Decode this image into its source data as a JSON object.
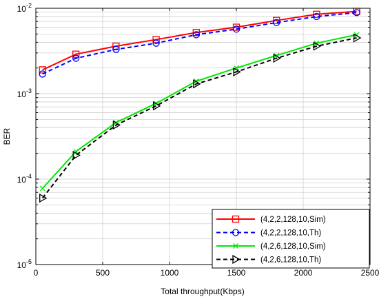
{
  "chart_data": {
    "type": "line",
    "xlabel": "Total throughput(Kbps)",
    "ylabel": "BER",
    "xlim": [
      0,
      2500
    ],
    "ylim": [
      1e-05,
      0.01
    ],
    "yscale": "log",
    "grid": true,
    "legend_position": "bottom-right",
    "x_ticks": [
      "0",
      "500",
      "1000",
      "1500",
      "2000",
      "2500"
    ],
    "y_ticks": [
      {
        "base": "10",
        "exp": "-5",
        "value": 1e-05
      },
      {
        "base": "10",
        "exp": "-4",
        "value": 0.0001
      },
      {
        "base": "10",
        "exp": "-3",
        "value": 0.001
      },
      {
        "base": "10",
        "exp": "-2",
        "value": 0.01
      }
    ],
    "series": [
      {
        "name": "(4,2,2,128,10,Sim)",
        "color": "#ff0000",
        "line_style": "solid",
        "marker": "square",
        "x": [
          50,
          300,
          600,
          900,
          1200,
          1500,
          1800,
          2100,
          2400
        ],
        "y": [
          0.0019,
          0.0029,
          0.0036,
          0.0043,
          0.0052,
          0.006,
          0.0072,
          0.0085,
          0.0092
        ]
      },
      {
        "name": "(4,2,2,128,10,Th)",
        "color": "#0000ff",
        "line_style": "dashed",
        "marker": "circle",
        "x": [
          50,
          300,
          600,
          900,
          1200,
          1500,
          1800,
          2100,
          2400
        ],
        "y": [
          0.0017,
          0.0026,
          0.0033,
          0.0039,
          0.0049,
          0.0057,
          0.0068,
          0.008,
          0.0089
        ]
      },
      {
        "name": "(4,2,6,128,10,Sim)",
        "color": "#00e600",
        "line_style": "solid",
        "marker": "x",
        "x": [
          50,
          300,
          600,
          900,
          1200,
          1500,
          1800,
          2100,
          2400
        ],
        "y": [
          7.8e-05,
          0.00021,
          0.00046,
          0.00077,
          0.0014,
          0.002,
          0.0028,
          0.0039,
          0.0049
        ]
      },
      {
        "name": "(4,2,6,128,10,Th)",
        "color": "#000000",
        "line_style": "dashed",
        "marker": "triangle-right",
        "x": [
          50,
          300,
          600,
          900,
          1200,
          1500,
          1800,
          2100,
          2400
        ],
        "y": [
          6e-05,
          0.00019,
          0.00043,
          0.00072,
          0.0013,
          0.0018,
          0.0026,
          0.0036,
          0.0045
        ]
      }
    ]
  }
}
